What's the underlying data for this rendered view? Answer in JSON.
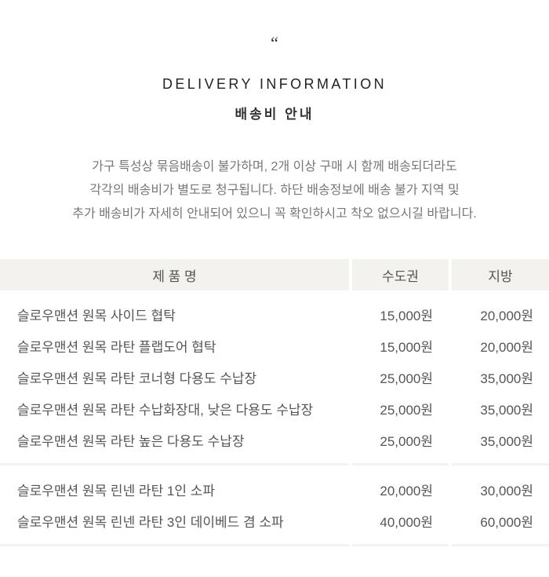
{
  "header": {
    "quote_mark": "“",
    "title_en": "DELIVERY INFORMATION",
    "title_ko": "배송비 안내"
  },
  "description": [
    "가구 특성상 묶음배송이 불가하며, 2개 이상 구매 시 함께 배송되더라도",
    "각각의 배송비가 별도로 청구됩니다. 하단 배송정보에 배송 불가 지역 및",
    "추가 배송비가 자세히 안내되어 있으니 꼭 확인하시고 착오 없으시길 바랍니다."
  ],
  "table": {
    "headers": [
      "제 품 명",
      "수도권",
      "지방"
    ],
    "group1": [
      {
        "name": "슬로우맨션 원목 사이드 협탁",
        "metro": "15,000원",
        "local": "20,000원"
      },
      {
        "name": "슬로우맨션 원목 라탄 플랩도어 협탁",
        "metro": "15,000원",
        "local": "20,000원"
      },
      {
        "name": "슬로우맨션 원목 라탄 코너형 다용도 수납장",
        "metro": "25,000원",
        "local": "35,000원"
      },
      {
        "name": "슬로우맨션 원목 라탄 수납화장대, 낮은 다용도 수납장",
        "metro": "25,000원",
        "local": "35,000원"
      },
      {
        "name": "슬로우맨션 원목 라탄 높은 다용도 수납장",
        "metro": "25,000원",
        "local": "35,000원"
      }
    ],
    "group2": [
      {
        "name": "슬로우맨션 원목 린넨 라탄 1인 소파",
        "metro": "20,000원",
        "local": "30,000원"
      },
      {
        "name": "슬로우맨션 원목 린넨 라탄 3인 데이베드 겸 소파",
        "metro": "40,000원",
        "local": "60,000원"
      }
    ]
  },
  "colors": {
    "header_bg": "#f3f2ee",
    "text": "#555555",
    "title": "#222222"
  }
}
